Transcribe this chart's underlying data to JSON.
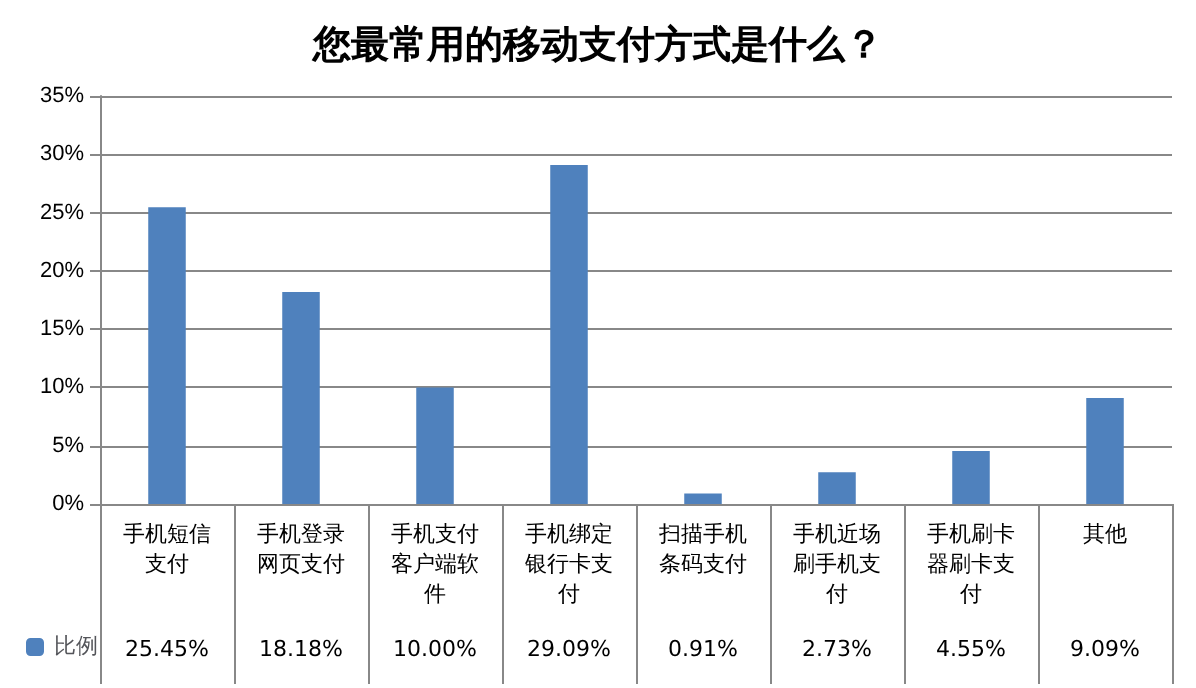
{
  "chart_data": {
    "type": "bar",
    "title": "您最常用的移动支付方式是什么？",
    "categories": [
      "手机短信支付",
      "手机登录网页支付",
      "手机支付客户端软件",
      "手机绑定银行卡支付",
      "扫描手机条码支付",
      "手机近场刷手机支付",
      "手机刷卡器刷卡支付",
      "其他"
    ],
    "series": [
      {
        "name": "比例",
        "color": "#4f81bd",
        "values": [
          25.45,
          18.18,
          10.0,
          29.09,
          0.91,
          2.73,
          4.55,
          9.09
        ],
        "value_labels": [
          "25.45%",
          "18.18%",
          "10.00%",
          "29.09%",
          "0.91%",
          "2.73%",
          "4.55%",
          "9.09%"
        ]
      }
    ],
    "ylim": [
      0,
      35
    ],
    "yticks": [
      {
        "value": 0,
        "label": "0%"
      },
      {
        "value": 5,
        "label": "5%"
      },
      {
        "value": 10,
        "label": "10%"
      },
      {
        "value": 15,
        "label": "15%"
      },
      {
        "value": 20,
        "label": "20%"
      },
      {
        "value": 25,
        "label": "25%"
      },
      {
        "value": 30,
        "label": "30%"
      },
      {
        "value": 35,
        "label": "35%"
      }
    ],
    "grid": "y",
    "legend": "bottom left"
  }
}
